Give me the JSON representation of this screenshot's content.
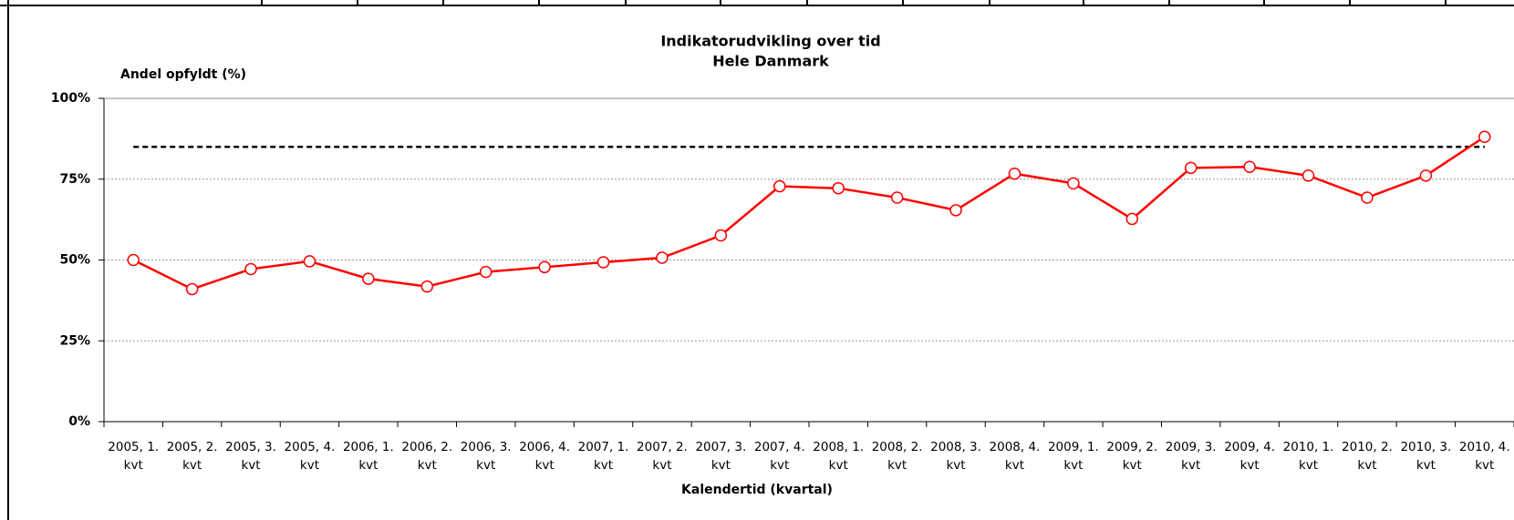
{
  "chart_data": {
    "type": "line",
    "title": "Indikatorudvikling over tid",
    "subtitle": "Hele Danmark",
    "y_label": "Andel opfyldt (%)",
    "x_label": "Kalendertid (kvartal)",
    "categories": [
      "2005, 1. kvt",
      "2005, 2. kvt",
      "2005, 3. kvt",
      "2005, 4. kvt",
      "2006, 1. kvt",
      "2006, 2. kvt",
      "2006, 3. kvt",
      "2006, 4. kvt",
      "2007, 1. kvt",
      "2007, 2. kvt",
      "2007, 3. kvt",
      "2007, 4. kvt",
      "2008, 1. kvt",
      "2008, 2. kvt",
      "2008, 3. kvt",
      "2008, 4. kvt",
      "2009, 1. kvt",
      "2009, 2. kvt",
      "2009, 3. kvt",
      "2009, 4. kvt",
      "2010, 1. kvt",
      "2010, 2. kvt",
      "2010, 3. kvt",
      "2010, 4. kvt"
    ],
    "series": [
      {
        "color": "#ff0000",
        "values": [
          50,
          41,
          47.2,
          49.6,
          44.2,
          41.8,
          46.3,
          47.8,
          49.3,
          50.7,
          57.6,
          72.8,
          72.2,
          69.3,
          65.4,
          76.7,
          73.7,
          62.7,
          78.5,
          78.8,
          76.1,
          69.3,
          76.1,
          88.1
        ]
      }
    ],
    "reference_line": {
      "value": 85,
      "color": "#000000"
    },
    "ylim": [
      0,
      100
    ],
    "yticks": [
      {
        "value": 0,
        "label": "0%"
      },
      {
        "value": 25,
        "label": "25%"
      },
      {
        "value": 50,
        "label": "50%"
      },
      {
        "value": 75,
        "label": "75%"
      },
      {
        "value": 100,
        "label": "100%"
      }
    ],
    "grid": true
  }
}
